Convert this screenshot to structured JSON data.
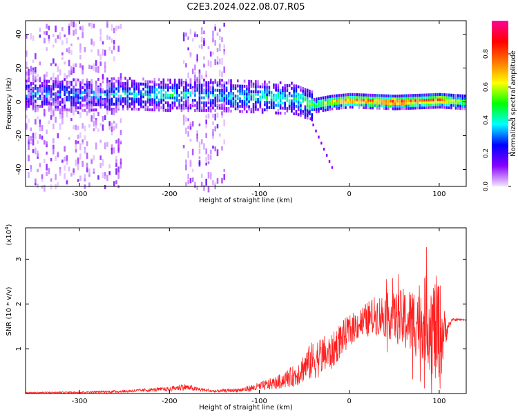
{
  "title": "C2E3.2024.022.08.07.R05",
  "chart_data": [
    {
      "type": "heatmap",
      "xlabel": "Height of straight line (km)",
      "ylabel": "Frequency (Hz)",
      "xlim": [
        -360,
        130
      ],
      "ylim": [
        -50,
        48
      ],
      "xticks": [
        -300,
        -200,
        -100,
        0,
        100
      ],
      "yticks": [
        -40,
        -20,
        0,
        20,
        40
      ],
      "colorbar": {
        "label": "Normalized spectral amplitude",
        "range": [
          0,
          1
        ],
        "ticks": [
          0.0,
          0.2,
          0.4,
          0.6,
          0.8
        ],
        "colors": [
          "#f4e8ff",
          "#8800ff",
          "#0000ff",
          "#00ffff",
          "#00ff00",
          "#ffff00",
          "#ff7700",
          "#ff0000",
          "#ff0099"
        ]
      },
      "ridge": [
        {
          "x": -345,
          "freq": 5,
          "amp": 0.3
        },
        {
          "x": -300,
          "freq": 4,
          "amp": 0.3
        },
        {
          "x": -250,
          "freq": 5,
          "amp": 0.35
        },
        {
          "x": -200,
          "freq": 4,
          "amp": 0.4
        },
        {
          "x": -150,
          "freq": 4,
          "amp": 0.35
        },
        {
          "x": -100,
          "freq": 3,
          "amp": 0.4
        },
        {
          "x": -60,
          "freq": 2,
          "amp": 0.45
        },
        {
          "x": -40,
          "freq": -2,
          "amp": 0.5
        },
        {
          "x": -20,
          "freq": 0,
          "amp": 0.7
        },
        {
          "x": 0,
          "freq": 1,
          "amp": 0.8
        },
        {
          "x": 50,
          "freq": 0,
          "amp": 0.85
        },
        {
          "x": 100,
          "freq": 1,
          "amp": 0.85
        },
        {
          "x": 130,
          "freq": 0,
          "amp": 0.5
        }
      ],
      "noise_bands": [
        [
          -360,
          -255
        ],
        [
          -185,
          -140
        ]
      ],
      "grid": false
    },
    {
      "type": "line",
      "xlabel": "Height of straight line (km)",
      "ylabel": "SNR (10 * v/v)",
      "y_multiplier": "(x10",
      "y_multiplier_exp": "4",
      "y_multiplier_close": ")",
      "xlim": [
        -360,
        130
      ],
      "ylim": [
        0,
        3.7
      ],
      "xticks": [
        -300,
        -200,
        -100,
        0,
        100
      ],
      "yticks": [
        1,
        2,
        3
      ],
      "color": "#ff2020",
      "series": [
        {
          "x": [
            -360,
            -300,
            -250,
            -200,
            -185,
            -170,
            -150,
            -120,
            -100,
            -80,
            -60,
            -50,
            -40,
            -30,
            -20,
            -10,
            0,
            10,
            20,
            30,
            40,
            50,
            60,
            70,
            80,
            90,
            95,
            100,
            105,
            110,
            115,
            130
          ],
          "y": [
            0.02,
            0.03,
            0.05,
            0.1,
            0.15,
            0.1,
            0.05,
            0.08,
            0.15,
            0.25,
            0.4,
            0.6,
            0.75,
            0.85,
            0.9,
            1.2,
            1.4,
            1.55,
            1.65,
            1.75,
            1.75,
            1.7,
            1.65,
            1.6,
            1.7,
            1.6,
            1.4,
            1.3,
            1.35,
            1.5,
            1.65,
            1.65
          ],
          "spread": [
            0.01,
            0.02,
            0.03,
            0.05,
            0.08,
            0.05,
            0.03,
            0.05,
            0.1,
            0.15,
            0.25,
            0.35,
            0.45,
            0.45,
            0.4,
            0.4,
            0.35,
            0.35,
            0.4,
            0.45,
            0.5,
            0.55,
            0.7,
            0.8,
            0.9,
            1.1,
            1.2,
            1.4,
            0.6,
            0.1,
            0.03,
            0.02
          ]
        }
      ],
      "grid": false
    }
  ]
}
